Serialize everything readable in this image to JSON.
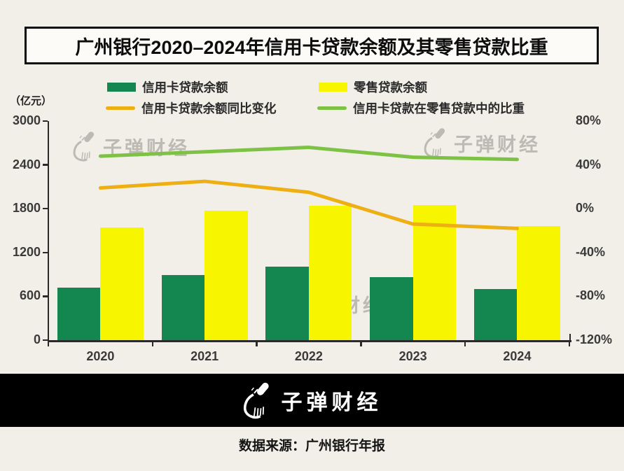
{
  "title": "广州银行2020–2024年信用卡贷款余额及其零售贷款比重",
  "unit_label": "（亿元）",
  "legend": {
    "items": [
      {
        "label": "信用卡贷款余额",
        "type": "swatch",
        "color": "#148750"
      },
      {
        "label": "零售贷款余额",
        "type": "swatch",
        "color": "#f7f500"
      },
      {
        "label": "信用卡贷款余额同比变化",
        "type": "line",
        "color": "#eeaf13"
      },
      {
        "label": "信用卡贷款在零售贷款中的比重",
        "type": "line",
        "color": "#7dc245"
      }
    ]
  },
  "chart_data": {
    "type": "bar",
    "subtype": "grouped-bars-with-lines",
    "categories": [
      "2020",
      "2021",
      "2022",
      "2023",
      "2024"
    ],
    "series": [
      {
        "name": "信用卡贷款余额",
        "kind": "bar",
        "axis": "left",
        "color": "#148750",
        "values": [
          715,
          890,
          1010,
          860,
          697
        ]
      },
      {
        "name": "零售贷款余额",
        "kind": "bar",
        "axis": "left",
        "color": "#f7f500",
        "values": [
          1545,
          1775,
          1840,
          1850,
          1565
        ]
      },
      {
        "name": "信用卡贷款余额同比变化",
        "kind": "line",
        "axis": "right",
        "color": "#eeaf13",
        "values": [
          19,
          25,
          15,
          -14,
          -18
        ]
      },
      {
        "name": "信用卡贷款在零售贷款中的比重",
        "kind": "line",
        "axis": "right",
        "color": "#7dc245",
        "values": [
          48,
          52,
          56,
          47,
          45
        ]
      }
    ],
    "left_axis": {
      "label": "（亿元）",
      "ticks": [
        3000,
        2400,
        1800,
        1200,
        600,
        0
      ],
      "range": [
        0,
        3000
      ]
    },
    "right_axis": {
      "ticks": [
        "80%",
        "40%",
        "0%",
        "-40%",
        "-80%",
        "-120%"
      ],
      "tick_values": [
        80,
        40,
        0,
        -40,
        -80,
        -120
      ],
      "range": [
        -120,
        80
      ]
    },
    "grid": false,
    "legend_position": "top"
  },
  "watermark_text": "子弹财经",
  "footer": {
    "logo_text": "子弹财经"
  },
  "source": "数据来源：广州银行年报",
  "colors": {
    "background": "#f1efe8",
    "title_box_bg": "#fcfbf7",
    "bar_green": "#148750",
    "bar_yellow": "#f7f500",
    "line_orange": "#eeaf13",
    "line_green": "#7dc245",
    "axis_text": "#3a3a3a",
    "footer_band": "#000000",
    "watermark": "#a8a6a0"
  }
}
